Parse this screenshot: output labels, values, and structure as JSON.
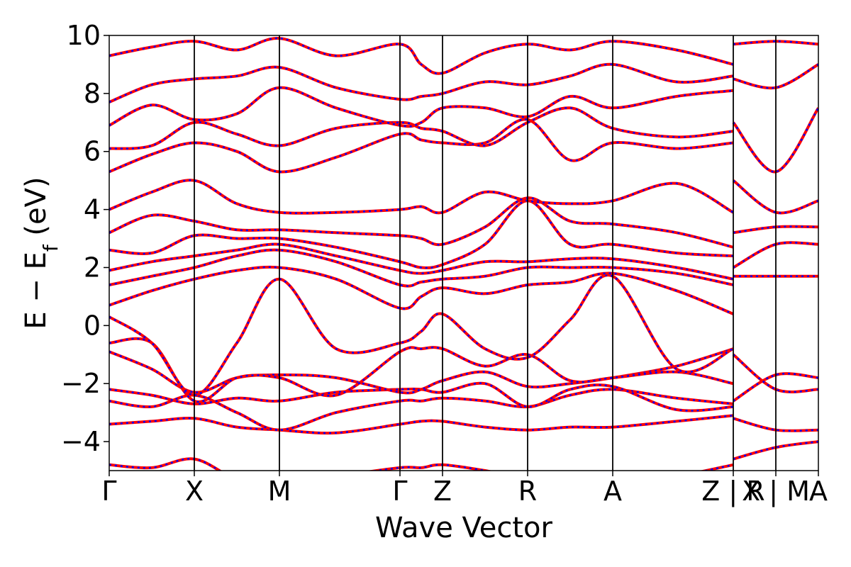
{
  "chart_data": {
    "type": "line",
    "title": "",
    "xlabel": "Wave Vector",
    "ylabel_main": "E − E",
    "ylabel_sub": "f",
    "ylabel_unit": " (eV)",
    "ylim": [
      -5,
      10
    ],
    "yticks": [
      -4,
      -2,
      0,
      2,
      4,
      6,
      8,
      10
    ],
    "ytick_labels": [
      "−4",
      "−2",
      "0",
      "2",
      "4",
      "6",
      "8",
      "10"
    ],
    "kpath": [
      {
        "label": "Γ",
        "pos": 0.0
      },
      {
        "label": "X",
        "pos": 0.12
      },
      {
        "label": "M",
        "pos": 0.24
      },
      {
        "label": "Γ",
        "pos": 0.41
      },
      {
        "label": "Z",
        "pos": 0.47
      },
      {
        "label": "R",
        "pos": 0.59
      },
      {
        "label": "A",
        "pos": 0.71
      },
      {
        "label": "Z | R",
        "pos": 0.88
      },
      {
        "label": "X | M",
        "pos": 0.94
      },
      {
        "label": "A",
        "pos": 1.0
      }
    ],
    "grid": false,
    "legend": "none",
    "colors": {
      "series_a": "#ff0000",
      "series_b": "#0000ff"
    },
    "bands": [
      {
        "x": [
          0.0,
          0.06,
          0.12,
          0.18,
          0.24,
          0.32,
          0.41,
          0.44,
          0.47,
          0.53,
          0.59,
          0.65,
          0.71,
          0.8,
          0.88
        ],
        "y": [
          -4.8,
          -4.9,
          -4.6,
          -5.3,
          -5.5,
          -5.2,
          -4.9,
          -4.9,
          -4.8,
          -5.0,
          -5.3,
          -5.4,
          -5.5,
          -5.2,
          -4.8
        ]
      },
      {
        "x": [
          0.0,
          0.06,
          0.12,
          0.18,
          0.24,
          0.32,
          0.41,
          0.44,
          0.47,
          0.53,
          0.59,
          0.65,
          0.71,
          0.8,
          0.88
        ],
        "y": [
          -3.4,
          -3.3,
          -3.2,
          -3.5,
          -3.6,
          -3.7,
          -3.4,
          -3.3,
          -3.3,
          -3.5,
          -3.6,
          -3.5,
          -3.5,
          -3.3,
          -3.1
        ]
      },
      {
        "x": [
          0.0,
          0.06,
          0.12,
          0.18,
          0.24,
          0.32,
          0.41,
          0.44,
          0.47,
          0.53,
          0.59,
          0.65,
          0.71,
          0.8,
          0.88
        ],
        "y": [
          -2.6,
          -2.8,
          -2.4,
          -3.0,
          -3.6,
          -3.0,
          -2.6,
          -2.6,
          -2.5,
          -2.6,
          -2.8,
          -2.4,
          -2.2,
          -2.5,
          -2.7
        ]
      },
      {
        "x": [
          0.0,
          0.06,
          0.12,
          0.18,
          0.24,
          0.32,
          0.41,
          0.44,
          0.47,
          0.53,
          0.59,
          0.65,
          0.71,
          0.8,
          0.88
        ],
        "y": [
          -2.2,
          -2.4,
          -2.7,
          -2.5,
          -2.6,
          -2.3,
          -2.2,
          -2.2,
          -2.3,
          -2.0,
          -2.8,
          -2.2,
          -2.1,
          -2.9,
          -2.8
        ]
      },
      {
        "x": [
          0.0,
          0.06,
          0.12,
          0.18,
          0.24,
          0.32,
          0.41,
          0.44,
          0.47,
          0.53,
          0.59,
          0.65,
          0.71,
          0.8,
          0.88
        ],
        "y": [
          -0.9,
          -1.5,
          -2.3,
          -1.8,
          -1.7,
          -1.8,
          -2.3,
          -2.2,
          -1.9,
          -1.6,
          -2.1,
          -2.0,
          -1.8,
          -1.4,
          -0.8
        ]
      },
      {
        "x": [
          0.0,
          0.06,
          0.12,
          0.18,
          0.24,
          0.32,
          0.41,
          0.44,
          0.47,
          0.53,
          0.59,
          0.65,
          0.71,
          0.8,
          0.88
        ],
        "y": [
          -0.6,
          -0.6,
          -2.6,
          -1.8,
          -1.8,
          -2.4,
          -0.9,
          -0.8,
          -0.8,
          -1.4,
          -1.0,
          -1.9,
          -1.8,
          -1.6,
          -2.0
        ]
      },
      {
        "x": [
          0.0,
          0.06,
          0.12,
          0.18,
          0.24,
          0.32,
          0.41,
          0.44,
          0.47,
          0.53,
          0.59,
          0.65,
          0.71,
          0.8,
          0.88
        ],
        "y": [
          0.3,
          -0.6,
          -2.4,
          -0.6,
          1.6,
          -0.8,
          -0.6,
          -0.2,
          0.4,
          -0.8,
          -1.1,
          0.2,
          1.7,
          -1.5,
          -0.8
        ]
      },
      {
        "x": [
          0.0,
          0.06,
          0.12,
          0.18,
          0.24,
          0.32,
          0.41,
          0.44,
          0.47,
          0.53,
          0.59,
          0.65,
          0.71,
          0.8,
          0.88
        ],
        "y": [
          0.7,
          1.2,
          1.6,
          1.9,
          2.0,
          1.6,
          0.6,
          1.0,
          1.3,
          1.1,
          1.4,
          1.5,
          1.8,
          1.2,
          0.4
        ]
      },
      {
        "x": [
          0.0,
          0.06,
          0.12,
          0.18,
          0.24,
          0.32,
          0.41,
          0.44,
          0.47,
          0.53,
          0.59,
          0.65,
          0.71,
          0.8,
          0.88
        ],
        "y": [
          1.4,
          1.7,
          2.0,
          2.4,
          2.6,
          2.2,
          1.4,
          1.5,
          1.6,
          1.7,
          2.0,
          2.0,
          2.0,
          1.8,
          1.4
        ]
      },
      {
        "x": [
          0.0,
          0.06,
          0.12,
          0.18,
          0.24,
          0.32,
          0.41,
          0.44,
          0.47,
          0.53,
          0.59,
          0.65,
          0.71,
          0.8,
          0.88
        ],
        "y": [
          1.9,
          2.2,
          2.4,
          2.6,
          2.8,
          2.4,
          1.9,
          1.8,
          1.9,
          2.2,
          2.2,
          2.3,
          2.3,
          2.0,
          1.6
        ]
      },
      {
        "x": [
          0.0,
          0.06,
          0.12,
          0.18,
          0.24,
          0.32,
          0.41,
          0.44,
          0.47,
          0.53,
          0.59,
          0.65,
          0.71,
          0.8,
          0.88
        ],
        "y": [
          2.6,
          2.5,
          3.1,
          3.0,
          3.0,
          2.7,
          2.2,
          2.0,
          2.1,
          2.8,
          4.3,
          2.8,
          2.8,
          2.5,
          2.4
        ]
      },
      {
        "x": [
          0.0,
          0.06,
          0.12,
          0.18,
          0.24,
          0.32,
          0.41,
          0.44,
          0.47,
          0.53,
          0.59,
          0.65,
          0.71,
          0.8,
          0.88
        ],
        "y": [
          3.2,
          3.8,
          3.6,
          3.3,
          3.3,
          3.2,
          3.1,
          3.0,
          2.8,
          3.4,
          4.4,
          3.6,
          3.5,
          3.2,
          2.7
        ]
      },
      {
        "x": [
          0.0,
          0.06,
          0.12,
          0.18,
          0.24,
          0.32,
          0.41,
          0.44,
          0.47,
          0.53,
          0.59,
          0.65,
          0.71,
          0.8,
          0.88
        ],
        "y": [
          4.0,
          4.6,
          5.0,
          4.2,
          3.9,
          3.9,
          4.0,
          4.1,
          3.9,
          4.6,
          4.3,
          4.2,
          4.3,
          4.9,
          3.9
        ]
      },
      {
        "x": [
          0.0,
          0.06,
          0.12,
          0.18,
          0.24,
          0.32,
          0.41,
          0.44,
          0.47,
          0.53,
          0.59,
          0.65,
          0.71,
          0.8,
          0.88
        ],
        "y": [
          5.3,
          5.9,
          6.3,
          6.0,
          5.3,
          5.8,
          6.6,
          6.4,
          6.3,
          6.3,
          7.1,
          5.7,
          6.3,
          6.1,
          6.3
        ]
      },
      {
        "x": [
          0.0,
          0.06,
          0.12,
          0.18,
          0.24,
          0.32,
          0.41,
          0.44,
          0.47,
          0.53,
          0.59,
          0.65,
          0.71,
          0.8,
          0.88
        ],
        "y": [
          6.1,
          6.2,
          7.0,
          6.6,
          6.2,
          6.8,
          7.0,
          6.8,
          6.7,
          6.2,
          7.0,
          7.5,
          6.8,
          6.5,
          6.7
        ]
      },
      {
        "x": [
          0.0,
          0.06,
          0.12,
          0.18,
          0.24,
          0.32,
          0.41,
          0.44,
          0.47,
          0.53,
          0.59,
          0.65,
          0.71,
          0.8,
          0.88
        ],
        "y": [
          6.9,
          7.6,
          7.1,
          7.3,
          8.2,
          7.5,
          6.9,
          7.0,
          7.5,
          7.5,
          7.2,
          7.9,
          7.5,
          7.9,
          8.1
        ]
      },
      {
        "x": [
          0.0,
          0.06,
          0.12,
          0.18,
          0.24,
          0.32,
          0.41,
          0.44,
          0.47,
          0.53,
          0.59,
          0.65,
          0.71,
          0.8,
          0.88
        ],
        "y": [
          7.7,
          8.3,
          8.5,
          8.6,
          8.9,
          8.2,
          7.8,
          7.9,
          8.0,
          8.4,
          8.3,
          8.6,
          9.0,
          8.4,
          8.6
        ]
      },
      {
        "x": [
          0.0,
          0.06,
          0.12,
          0.18,
          0.24,
          0.32,
          0.41,
          0.44,
          0.47,
          0.53,
          0.59,
          0.65,
          0.71,
          0.8,
          0.88
        ],
        "y": [
          9.3,
          9.6,
          9.8,
          9.5,
          9.9,
          9.3,
          9.7,
          9.0,
          8.7,
          9.4,
          9.7,
          9.5,
          9.8,
          9.5,
          9.0
        ]
      }
    ],
    "extra_bands": [
      {
        "x": [
          0.88,
          0.94,
          1.0
        ],
        "y": [
          -4.6,
          -4.2,
          -4.0
        ]
      },
      {
        "x": [
          0.88,
          0.94,
          1.0
        ],
        "y": [
          -3.2,
          -3.6,
          -3.6
        ]
      },
      {
        "x": [
          0.88,
          0.94,
          1.0
        ],
        "y": [
          -2.6,
          -1.7,
          -1.8
        ]
      },
      {
        "x": [
          0.88,
          0.94,
          1.0
        ],
        "y": [
          -1.0,
          -2.2,
          -2.2
        ]
      },
      {
        "x": [
          0.88,
          0.94,
          1.0
        ],
        "y": [
          1.7,
          1.7,
          1.7
        ]
      },
      {
        "x": [
          0.88,
          0.94,
          1.0
        ],
        "y": [
          2.0,
          2.8,
          2.8
        ]
      },
      {
        "x": [
          0.88,
          0.94,
          1.0
        ],
        "y": [
          3.2,
          3.4,
          3.4
        ]
      },
      {
        "x": [
          0.88,
          0.94,
          1.0
        ],
        "y": [
          5.0,
          3.9,
          4.3
        ]
      },
      {
        "x": [
          0.88,
          0.94,
          1.0
        ],
        "y": [
          7.0,
          5.3,
          7.5
        ]
      },
      {
        "x": [
          0.88,
          0.94,
          1.0
        ],
        "y": [
          8.5,
          8.2,
          9.0
        ]
      },
      {
        "x": [
          0.88,
          0.94,
          1.0
        ],
        "y": [
          9.7,
          9.8,
          9.7
        ]
      }
    ]
  }
}
